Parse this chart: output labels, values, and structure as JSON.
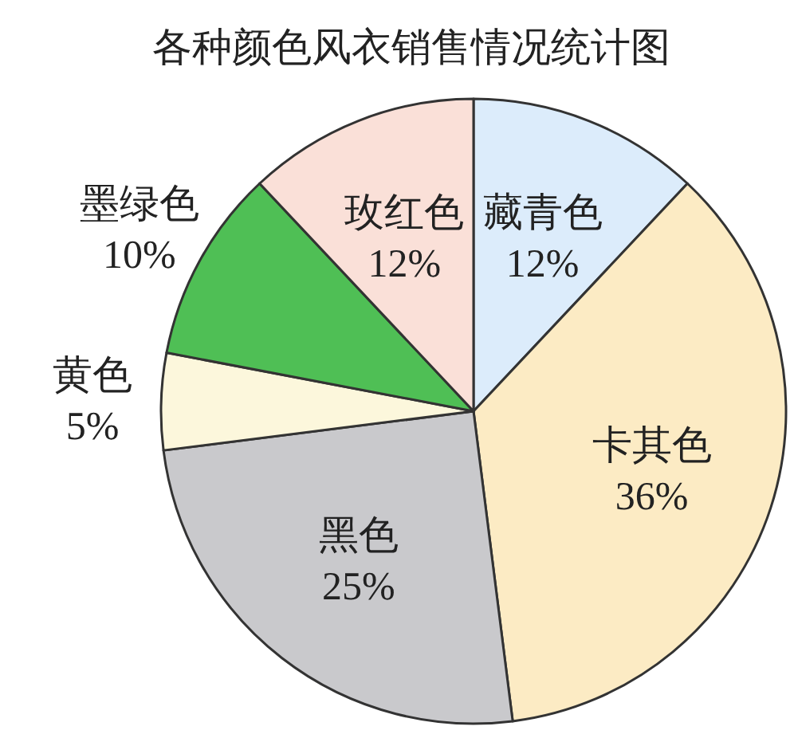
{
  "chart_data": {
    "type": "pie",
    "title": "各种颜色风衣销售情况统计图",
    "value_labels": [
      "12%",
      "36%",
      "25%",
      "5%",
      "10%",
      "12%"
    ],
    "categories": [
      "藏青色",
      "卡其色",
      "黑色",
      "黄色",
      "墨绿色",
      "玫红色"
    ],
    "values": [
      12,
      36,
      25,
      5,
      10,
      12
    ],
    "colors": [
      "#dcecfb",
      "#fcebc4",
      "#c9c9cc",
      "#fcf7dc",
      "#4fbf55",
      "#fae0d8"
    ]
  }
}
